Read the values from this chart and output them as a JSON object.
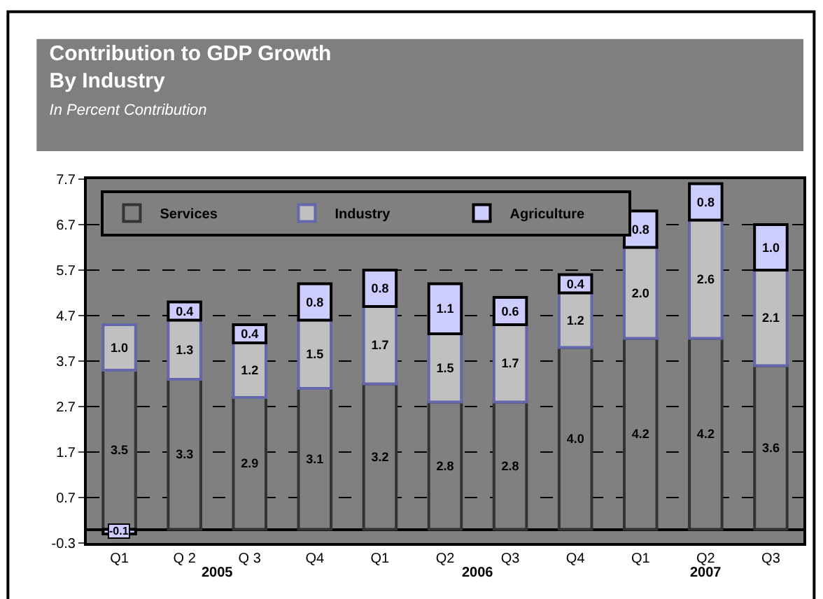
{
  "chart_data": {
    "type": "bar",
    "stacked": true,
    "title": "Contribution to GDP Growth\nBy Industry",
    "subtitle": "In Percent Contribution",
    "categories": [
      "Q1",
      "Q 2",
      "Q 3",
      "Q4",
      "Q1",
      "Q2",
      "Q3",
      "Q4",
      "Q1",
      "Q2",
      "Q3"
    ],
    "series": [
      {
        "name": "Services",
        "color": "#808080",
        "values": [
          3.5,
          3.3,
          2.9,
          3.1,
          3.2,
          2.8,
          2.8,
          4.0,
          4.2,
          4.2,
          3.6
        ],
        "value_labels": [
          "3.5",
          "3.3",
          "2.9",
          "3.1",
          "3.2",
          "2.8",
          "2.8",
          "4.0",
          "4.2",
          "4.2",
          "3.6"
        ]
      },
      {
        "name": "Industry",
        "color": "#c0c0c0",
        "values": [
          1.0,
          1.3,
          1.2,
          1.5,
          1.7,
          1.5,
          1.7,
          1.2,
          2.0,
          2.6,
          2.1
        ],
        "value_labels": [
          "1.0",
          "1.3",
          "1.2",
          "1.5",
          "1.7",
          "1.5",
          "1.7",
          "1.2",
          "2.0",
          "2.6",
          "2.1"
        ]
      },
      {
        "name": "Agriculture",
        "color": "#ccccff",
        "values": [
          -0.1,
          0.4,
          0.4,
          0.8,
          0.8,
          1.1,
          0.6,
          0.4,
          0.8,
          0.8,
          1.0
        ],
        "value_labels": [
          "-0.1",
          "0.4",
          "0.4",
          "0.8",
          "0.8",
          "1.1",
          "0.6",
          "0.4",
          "0.8",
          "0.8",
          "1.0"
        ]
      }
    ],
    "annotations": [
      "2005",
      "2006",
      "2007"
    ],
    "ylim": [
      -0.3,
      7.7
    ],
    "yticks": [
      -0.3,
      0.7,
      1.7,
      2.7,
      3.7,
      4.7,
      5.7,
      6.7,
      7.7
    ],
    "grid": "y",
    "legend": "top left"
  }
}
